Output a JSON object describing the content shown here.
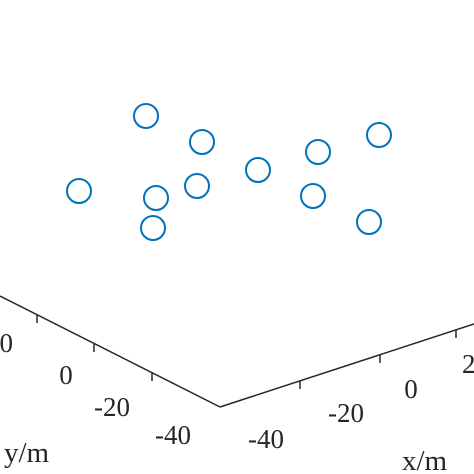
{
  "chart_data": {
    "type": "scatter",
    "title": "",
    "view": "3d",
    "xlabel": "x/m",
    "ylabel": "y/m",
    "marker": "circle-open",
    "marker_color": "#0072BD",
    "axis_color": "#262626",
    "x_ticks": [
      "-40",
      "-20",
      "0"
    ],
    "y_ticks": [
      "0",
      "-20",
      "-40"
    ],
    "points": [
      {
        "id": "p1"
      },
      {
        "id": "p2"
      },
      {
        "id": "p3"
      },
      {
        "id": "p4"
      },
      {
        "id": "p5"
      },
      {
        "id": "p6"
      },
      {
        "id": "p7"
      },
      {
        "id": "p8"
      },
      {
        "id": "p9"
      },
      {
        "id": "p10"
      },
      {
        "id": "p11"
      },
      {
        "id": "p12"
      }
    ]
  }
}
